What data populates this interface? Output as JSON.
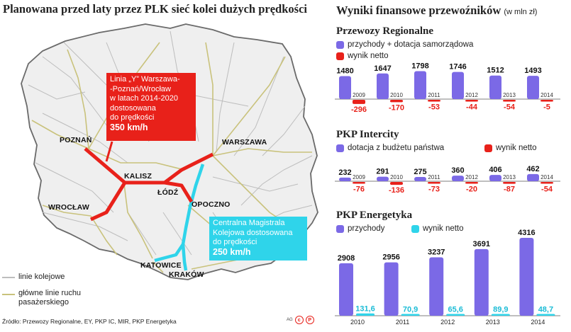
{
  "left": {
    "title": "Planowana przed laty przez PLK sieć kolei dużych prędkości",
    "cities": {
      "poznan": "POZNAŃ",
      "warszawa": "WARSZAWA",
      "kalisz": "KALISZ",
      "lodz": "ŁÓDŹ",
      "wroclaw": "WROCŁAW",
      "opoczno": "OPOCZNO",
      "katowice": "KATOWICE",
      "krakow": "KRAKÓW"
    },
    "callout_y": {
      "lines": [
        "Linia „Y” Warszawa-",
        "-Poznań/Wrocław",
        "w latach 2014-2020",
        "dostosowana",
        "do prędkości"
      ],
      "speed": "350 km/h",
      "color": "#e8211a"
    },
    "callout_cmk": {
      "lines": [
        "Centralna Magistrala",
        "Kolejowa dostosowana",
        "do prędkości"
      ],
      "speed": "250 km/h",
      "color": "#2fd4ea"
    },
    "legend": {
      "railway": "linie kolejowe",
      "main_lines": [
        "główne linie ruchu",
        "pasażerskiego"
      ]
    },
    "source": "Źródło: Przewozy Regionalne, EY, PKP IC, MIR, PKP Energetyka",
    "logo": "AG"
  },
  "right": {
    "title": "Wyniki finansowe przewoźników",
    "unit": "(w mln zł)",
    "colors": {
      "revenue": "#7b69e6",
      "net_red": "#e8211a",
      "net_cyan": "#2fd4ea"
    },
    "sections": [
      {
        "title": "Przewozy Regionalne",
        "legend_a": "przychody + dotacja samorządowa",
        "legend_b": "wynik netto",
        "years": [
          "2009",
          "2010",
          "2011",
          "2012",
          "2013",
          "2014"
        ],
        "revenue": [
          "1480",
          "1647",
          "1798",
          "1746",
          "1512",
          "1493"
        ],
        "net": [
          "-296",
          "-170",
          "-53",
          "-44",
          "-54",
          "-5"
        ]
      },
      {
        "title": "PKP Intercity",
        "legend_a": "dotacja z budżetu państwa",
        "legend_b": "wynik netto",
        "years": [
          "2009",
          "2010",
          "2011",
          "2012",
          "2013",
          "2014"
        ],
        "revenue": [
          "232",
          "291",
          "275",
          "360",
          "406",
          "462"
        ],
        "net": [
          "-76",
          "-136",
          "-73",
          "-20",
          "-87",
          "-54"
        ]
      },
      {
        "title": "PKP Energetyka",
        "legend_a": "przychody",
        "legend_b": "wynik netto",
        "years": [
          "2010",
          "2011",
          "2012",
          "2013",
          "2014"
        ],
        "revenue": [
          "2908",
          "2956",
          "3237",
          "3691",
          "4316"
        ],
        "net": [
          "131,6",
          "70,9",
          "65,6",
          "89,9",
          "48,7"
        ]
      }
    ]
  },
  "chart_data": [
    {
      "type": "bar",
      "title": "Przewozy Regionalne",
      "categories": [
        2009,
        2010,
        2011,
        2012,
        2013,
        2014
      ],
      "series": [
        {
          "name": "przychody + dotacja samorządowa",
          "values": [
            1480,
            1647,
            1798,
            1746,
            1512,
            1493
          ]
        },
        {
          "name": "wynik netto",
          "values": [
            -296,
            -170,
            -53,
            -44,
            -54,
            -5
          ]
        }
      ]
    },
    {
      "type": "bar",
      "title": "PKP Intercity",
      "categories": [
        2009,
        2010,
        2011,
        2012,
        2013,
        2014
      ],
      "series": [
        {
          "name": "dotacja z budżetu państwa",
          "values": [
            232,
            291,
            275,
            360,
            406,
            462
          ]
        },
        {
          "name": "wynik netto",
          "values": [
            -76,
            -136,
            -73,
            -20,
            -87,
            -54
          ]
        }
      ]
    },
    {
      "type": "bar",
      "title": "PKP Energetyka",
      "categories": [
        2010,
        2011,
        2012,
        2013,
        2014
      ],
      "series": [
        {
          "name": "przychody",
          "values": [
            2908,
            2956,
            3237,
            3691,
            4316
          ]
        },
        {
          "name": "wynik netto",
          "values": [
            131.6,
            70.9,
            65.6,
            89.9,
            48.7
          ]
        }
      ]
    }
  ]
}
